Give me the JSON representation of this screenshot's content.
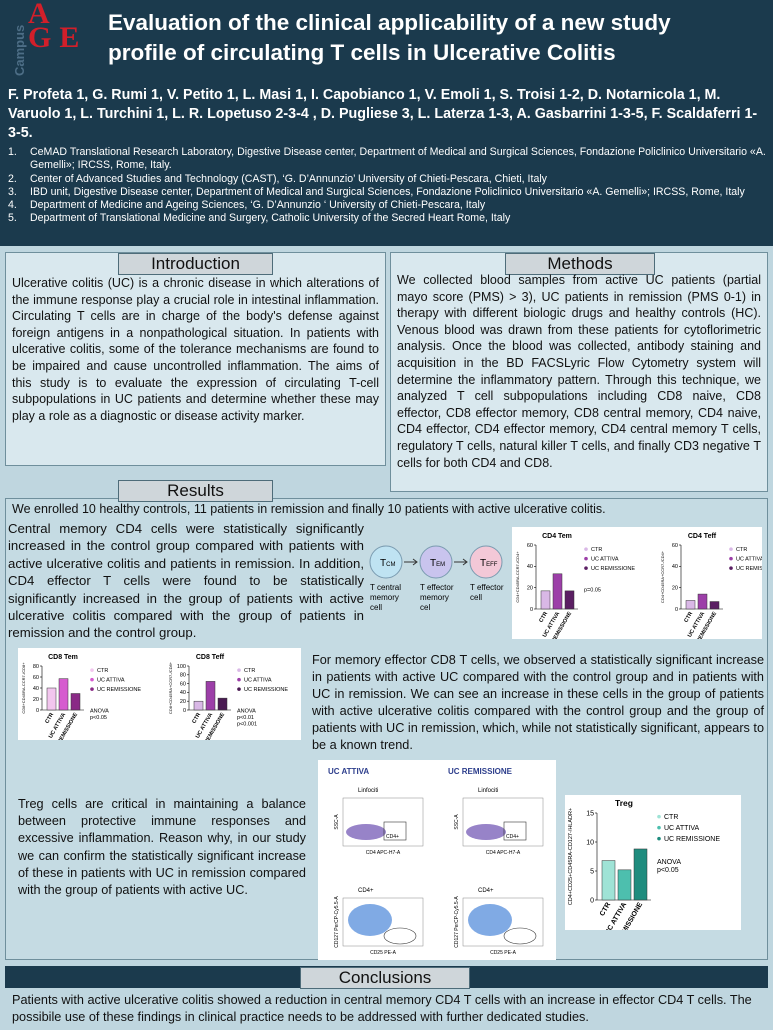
{
  "header": {
    "logo_letters": "AGE",
    "logo_side": "Campus",
    "title": "Evaluation of the clinical applicability of a new study profile of circulating T cells in Ulcerative Colitis",
    "authors": "F. Profeta 1, G. Rumi 1, V. Petito 1, L. Masi 1, I. Capobianco 1, V. Emoli 1, S. Troisi 1-2, D. Notarnicola 1, M. Varuolo 1, L. Turchini 1, L. R. Lopetuso 2-3-4 , D. Pugliese 3, L. Laterza 1-3, A. Gasbarrini 1-3-5, F. Scaldaferri 1-3-5.",
    "affiliations": [
      {
        "num": "1.",
        "text": "CeMAD Translational Research Laboratory, Digestive Disease center, Department of Medical and Surgical Sciences, Fondazione Policlinico Universitario «A. Gemelli»; IRCSS, Rome, Italy."
      },
      {
        "num": "2.",
        "text": "Center of Advanced Studies and Technology (CAST), ‘G. D’Annunzio’ University of Chieti-Pescara, Chieti, Italy"
      },
      {
        "num": "3.",
        "text": "IBD unit, Digestive Disease center, Department of Medical and Surgical Sciences, Fondazione Policlinico Universitario «A. Gemelli»; IRCSS, Rome, Italy"
      },
      {
        "num": "4.",
        "text": "Department of Medicine and Ageing Sciences, ‘G. D’Annunzio ‘ University of Chieti-Pescara, Italy"
      },
      {
        "num": "5.",
        "text": "Department of Translational Medicine and Surgery, Catholic University of the Secred Heart Rome, Italy"
      }
    ]
  },
  "introduction": {
    "heading": "Introduction",
    "text": "Ulcerative colitis (UC) is a chronic disease in which alterations of the immune response play a crucial role in intestinal inflammation. Circulating T cells are in charge of the body's defense against foreign antigens in a nonpathological situation. In patients with ulcerative colitis, some of the tolerance mechanisms are found to be impaired and cause uncontrolled inflammation. The aims of this study is to evaluate the expression of circulating T-cell subpopulations in UC patients and determine whether these may play a role as a diagnostic or disease activity marker."
  },
  "methods": {
    "heading": "Methods",
    "text": "We collected blood samples from active UC patients (partial mayo score (PMS) > 3), UC patients in remission (PMS 0-1) in therapy with different biologic drugs and healthy controls (HC). Venous blood was drawn from these patients for cytoflorimetric analysis. Once the blood was collected, antibody staining and acquisition in the BD FACSLyric Flow Cytometry system will determine the inflammatory pattern. Through this technique, we analyzed T cell subpopulations including CD8 naive, CD8 effector, CD8 effector memory, CD8 central memory, CD4 naive, CD4 effector, CD4 effector memory, CD4 central memory T cells, regulatory T cells, natural killer T cells, and finally CD3 negative T cells for both CD4 and CD8."
  },
  "results": {
    "heading": "Results",
    "lead": "We enrolled 10 healthy controls, 11 patients in remission and finally 10 patients with active ulcerative colitis.",
    "para1": "Central memory CD4 cells were statistically significantly increased in the control group compared with patients with active ulcerative colitis and patients in remission. In addition, CD4 effector T cells were found to be statistically significantly increased in the group of patients with active ulcerative colitis compared with the group of patients in remission and the control group.",
    "para2": "For memory effector CD8 T cells, we observed a statistically significant increase in patients with active UC compared with the control group and in patients with UC in remission. We can see an increase in these cells in the group of patients with active ulcerative colitis compared with the control group and the group of patients with UC in remission, which, while not statistically significant, appears to be a known trend.",
    "para3": "Treg cells are critical in maintaining a balance between protective immune responses and excessive inflammation. Reason why, in our study we can confirm the statistically significant increase of these in patients with UC in remission compared with the group of patients with active UC."
  },
  "diagram": {
    "nodes": [
      {
        "main": "T",
        "sub": "CM",
        "caption": "T central memory cell"
      },
      {
        "main": "T",
        "sub": "EM",
        "caption": "T effector memory cel"
      },
      {
        "main": "T",
        "sub": "EFF",
        "caption": "T effector cell"
      }
    ]
  },
  "charts": {
    "cd4_tem": {
      "title": "CD4 Tem",
      "y_label": "CD4+CD45RA-CCR7-/CD4+",
      "categories": [
        "CTR",
        "UC ATTIVA",
        "UC REMISSIONE"
      ],
      "values": [
        17,
        33,
        17
      ],
      "ylim": [
        0,
        60
      ],
      "yticks": [
        0,
        20,
        40,
        60
      ],
      "colors": [
        "#d9b8e6",
        "#9c3fa8",
        "#5b1f63"
      ],
      "notes": [
        "p=0.05"
      ]
    },
    "cd4_teff": {
      "title": "CD4 Teff",
      "y_label": "CD4+CD45RA+CCR7-/CD4+",
      "categories": [
        "CTR",
        "UC ATTIVA",
        "UC REMISSIONE"
      ],
      "values": [
        8,
        14,
        7
      ],
      "ylim": [
        0,
        60
      ],
      "yticks": [
        0,
        20,
        40,
        60
      ],
      "colors": [
        "#d9b8e6",
        "#9c3fa8",
        "#5b1f63"
      ],
      "notes": []
    },
    "cd8_tem": {
      "title": "CD8 Tem",
      "y_label": "CD8+CD45RA-CCR7-/CD8+",
      "categories": [
        "CTR",
        "UC ATTIVA",
        "UC REMISSIONE"
      ],
      "values": [
        40,
        57,
        30
      ],
      "ylim": [
        0,
        80
      ],
      "yticks": [
        0,
        20,
        40,
        60,
        80
      ],
      "colors": [
        "#f2c6ee",
        "#d65ccf",
        "#8a2a86"
      ],
      "notes": [
        "ANOVA",
        "p<0.05"
      ]
    },
    "cd8_teff": {
      "title": "CD8 Teff",
      "y_label": "CD8+CD45RA+CCR7-/CD8+",
      "categories": [
        "CTR",
        "UC ATTIVA",
        "UC REMISSIONE"
      ],
      "values": [
        20,
        65,
        27
      ],
      "ylim": [
        0,
        100
      ],
      "yticks": [
        0,
        20,
        40,
        60,
        80,
        100
      ],
      "colors": [
        "#d9b8e6",
        "#9c3fa8",
        "#4a1a52"
      ],
      "notes": [
        "ANOVA",
        "p<0.01",
        "p<0.001"
      ]
    },
    "treg": {
      "title": "Treg",
      "y_label": "CD4+CD25+CD45RA-CD127-/HLADR+",
      "categories": [
        "CTR",
        "UC ATTIVA",
        "UC REMISSIONE"
      ],
      "values": [
        6.8,
        5.2,
        8.8
      ],
      "ylim": [
        0,
        15
      ],
      "yticks": [
        0,
        5,
        10,
        15
      ],
      "colors": [
        "#9fe3d6",
        "#4dbfae",
        "#1f8c7e"
      ],
      "notes": [
        "ANOVA",
        "p<0.05"
      ]
    }
  },
  "flow": {
    "left_title": "UC ATTIVA",
    "right_title": "UC REMISSIONE",
    "gate1": "Linfociti",
    "gate2": "CD4+",
    "y1": "SSC-A",
    "x1": "CD4 APC-H7-A",
    "y2": "CD127 PerCP-Cy5.5-A",
    "x2": "CD25 PE-A"
  },
  "conclusions": {
    "heading": "Conclusions",
    "text": "Patients with active ulcerative colitis showed a reduction in central memory CD4 T cells with an increase in effector CD4 T cells. The possibile use of these findings in clinical practice needs to be addressed with further dedicated studies."
  }
}
